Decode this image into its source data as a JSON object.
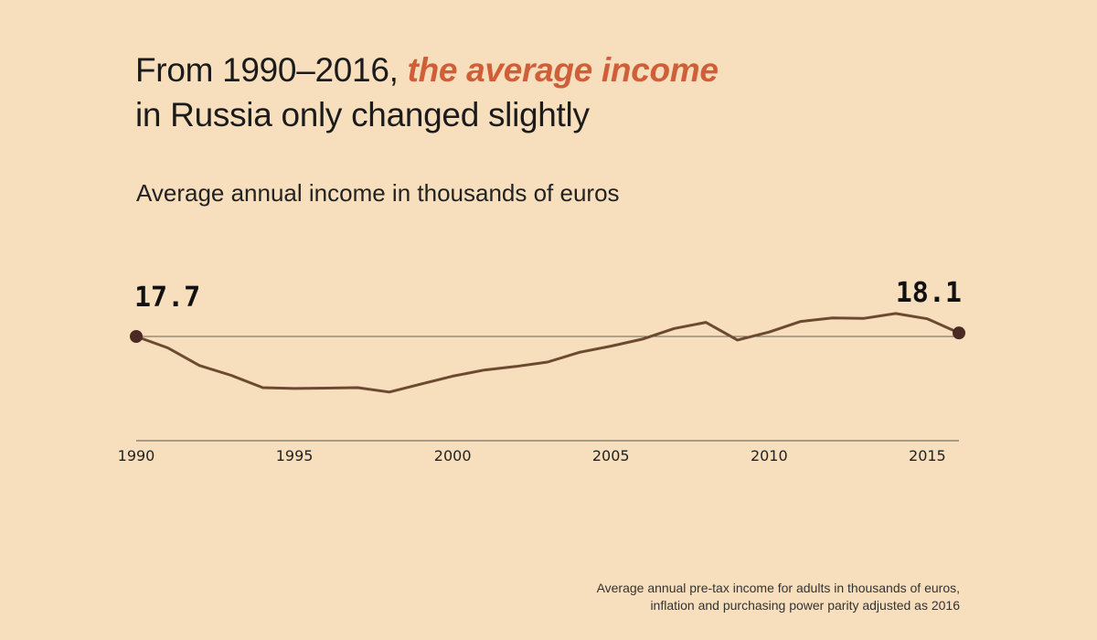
{
  "title": {
    "prefix": "From 1990–2016, ",
    "highlight": "the average income",
    "line2": "in Russia only changed slightly",
    "highlight_color": "#cf5f38"
  },
  "subtitle": "Average annual income in thousands of euros",
  "footnote": {
    "line1": "Average annual pre-tax income for adults in thousands of euros,",
    "line2": "inflation and purchasing power parity adjusted as 2016"
  },
  "chart_data": {
    "type": "line",
    "title": "From 1990–2016, the average income in Russia only changed slightly",
    "ylabel": "Average annual income in thousands of euros",
    "x": [
      1990,
      1991,
      1992,
      1993,
      1994,
      1995,
      1996,
      1997,
      1998,
      1999,
      2000,
      2001,
      2002,
      2003,
      2004,
      2005,
      2006,
      2007,
      2008,
      2009,
      2010,
      2011,
      2012,
      2013,
      2014,
      2015,
      2016
    ],
    "series": [
      {
        "values": [
          17.7,
          16.4,
          14.4,
          13.3,
          11.9,
          11.8,
          11.85,
          11.9,
          11.4,
          12.3,
          13.2,
          13.9,
          14.3,
          14.8,
          15.9,
          16.6,
          17.4,
          18.6,
          19.3,
          17.3,
          18.2,
          19.4,
          19.8,
          19.75,
          20.3,
          19.7,
          18.1
        ],
        "color": "#6b4a31"
      }
    ],
    "x_ticks": [
      1990,
      1995,
      2000,
      2005,
      2010,
      2015
    ],
    "xlim": [
      1990,
      2016
    ],
    "ylim": [
      0,
      25
    ],
    "reference_line": 17.7,
    "start_label": "17.7",
    "end_label": "18.1",
    "endpoint_color": "#4a2a22",
    "grid": false
  }
}
